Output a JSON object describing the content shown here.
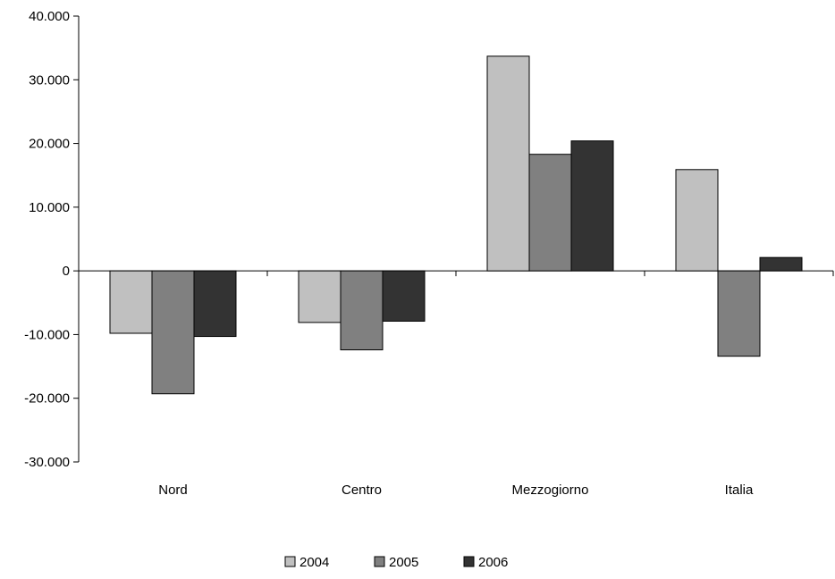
{
  "chart_data": {
    "type": "bar",
    "title": "",
    "xlabel": "",
    "ylabel": "",
    "categories": [
      "Nord",
      "Centro",
      "Mezzogiorno",
      "Italia"
    ],
    "series": [
      {
        "name": "2004",
        "color": "#c0c0c0",
        "values": [
          -9800,
          -8100,
          33700,
          15900
        ]
      },
      {
        "name": "2005",
        "color": "#808080",
        "values": [
          -19300,
          -12400,
          18300,
          -13400
        ]
      },
      {
        "name": "2006",
        "color": "#333333",
        "values": [
          -10300,
          -7900,
          20400,
          2100
        ]
      }
    ],
    "ylim": [
      -30000,
      40000
    ],
    "yticks": [
      40000,
      30000,
      20000,
      10000,
      0,
      -10000,
      -20000,
      -30000
    ],
    "ytick_labels": [
      "40.000",
      "30.000",
      "20.000",
      "10.000",
      "0",
      "-10.000",
      "-20.000",
      "-30.000"
    ],
    "grid": false,
    "legend_position": "bottom"
  }
}
